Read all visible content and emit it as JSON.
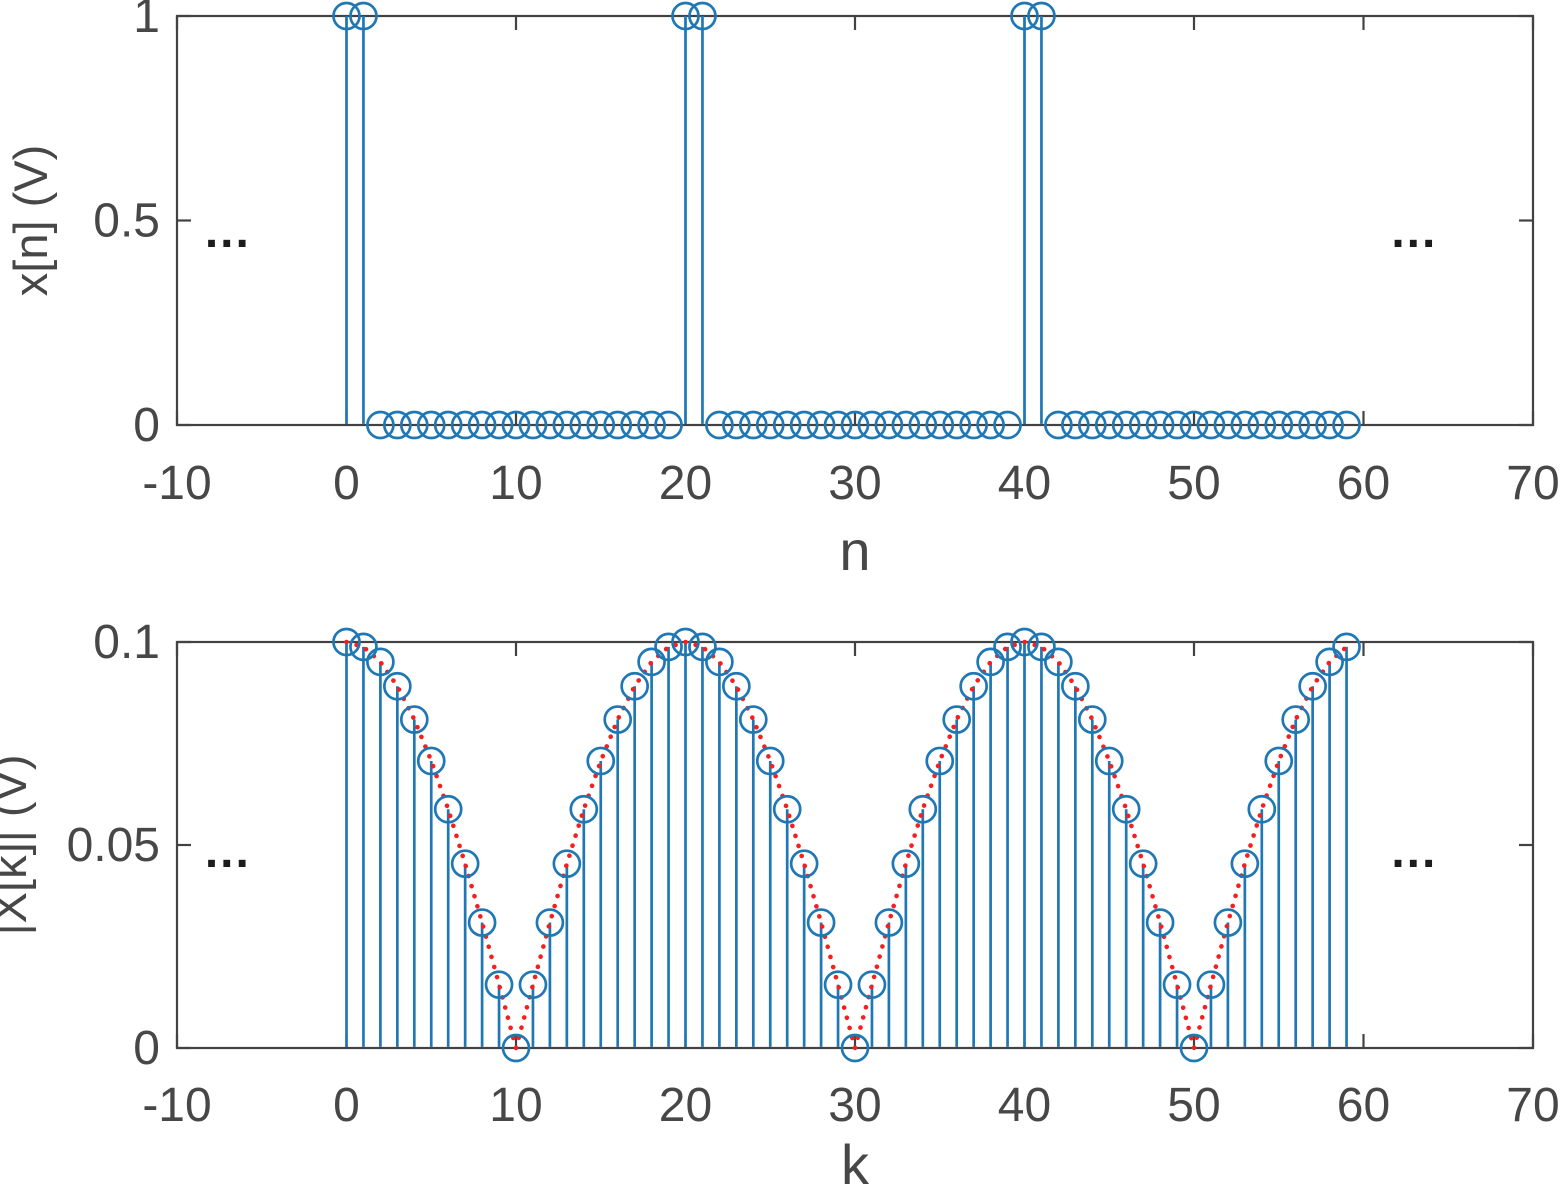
{
  "figure": {
    "background": "#ffffff"
  },
  "colors": {
    "stem": "#1f77b4",
    "marker": "#1f77b4",
    "dotted_line": "#f51f1f",
    "axis": "#424242",
    "tick_label": "#474747",
    "axis_label": "#474747",
    "annotation": "#1c1c1c"
  },
  "chart_data": [
    {
      "type": "stem",
      "name": "time-domain-signal",
      "xlabel": "n",
      "ylabel": "x[n] (V)",
      "xlim": [
        -10,
        70
      ],
      "ylim": [
        0,
        1
      ],
      "xticks": [
        -10,
        0,
        10,
        20,
        30,
        40,
        50,
        60,
        70
      ],
      "xtick_labels": [
        "-10",
        "0",
        "10",
        "20",
        "30",
        "40",
        "50",
        "60",
        "70"
      ],
      "yticks": [
        0,
        0.5,
        1
      ],
      "ytick_labels": [
        "0",
        "0.5",
        "1"
      ],
      "marker": "open-circle",
      "dotted_envelope": false,
      "x": [
        0,
        1,
        2,
        3,
        4,
        5,
        6,
        7,
        8,
        9,
        10,
        11,
        12,
        13,
        14,
        15,
        16,
        17,
        18,
        19,
        20,
        21,
        22,
        23,
        24,
        25,
        26,
        27,
        28,
        29,
        30,
        31,
        32,
        33,
        34,
        35,
        36,
        37,
        38,
        39,
        40,
        41,
        42,
        43,
        44,
        45,
        46,
        47,
        48,
        49,
        50,
        51,
        52,
        53,
        54,
        55,
        56,
        57,
        58,
        59
      ],
      "values": [
        1,
        1,
        0,
        0,
        0,
        0,
        0,
        0,
        0,
        0,
        0,
        0,
        0,
        0,
        0,
        0,
        0,
        0,
        0,
        0,
        1,
        1,
        0,
        0,
        0,
        0,
        0,
        0,
        0,
        0,
        0,
        0,
        0,
        0,
        0,
        0,
        0,
        0,
        0,
        0,
        1,
        1,
        0,
        0,
        0,
        0,
        0,
        0,
        0,
        0,
        0,
        0,
        0,
        0,
        0,
        0,
        0,
        0,
        0,
        0
      ],
      "annotations": [
        {
          "text": "...",
          "x": -7,
          "y": 0.46
        },
        {
          "text": "...",
          "x": 63,
          "y": 0.46
        }
      ]
    },
    {
      "type": "stem",
      "name": "dft-magnitude",
      "xlabel": "k",
      "ylabel": "|X[k]| (V)",
      "xlim": [
        -10,
        70
      ],
      "ylim": [
        0,
        0.1
      ],
      "xticks": [
        -10,
        0,
        10,
        20,
        30,
        40,
        50,
        60,
        70
      ],
      "xtick_labels": [
        "-10",
        "0",
        "10",
        "20",
        "30",
        "40",
        "50",
        "60",
        "70"
      ],
      "yticks": [
        0,
        0.05,
        0.1
      ],
      "ytick_labels": [
        "0",
        "0.05",
        "0.1"
      ],
      "marker": "open-circle",
      "dotted_envelope": true,
      "x": [
        0,
        1,
        2,
        3,
        4,
        5,
        6,
        7,
        8,
        9,
        10,
        11,
        12,
        13,
        14,
        15,
        16,
        17,
        18,
        19,
        20,
        21,
        22,
        23,
        24,
        25,
        26,
        27,
        28,
        29,
        30,
        31,
        32,
        33,
        34,
        35,
        36,
        37,
        38,
        39,
        40,
        41,
        42,
        43,
        44,
        45,
        46,
        47,
        48,
        49,
        50,
        51,
        52,
        53,
        54,
        55,
        56,
        57,
        58,
        59
      ],
      "values": [
        0.1,
        0.0988,
        0.0951,
        0.0891,
        0.0809,
        0.0707,
        0.0588,
        0.0454,
        0.0309,
        0.0156,
        0,
        0.0156,
        0.0309,
        0.0454,
        0.0588,
        0.0707,
        0.0809,
        0.0891,
        0.0951,
        0.0988,
        0.1,
        0.0988,
        0.0951,
        0.0891,
        0.0809,
        0.0707,
        0.0588,
        0.0454,
        0.0309,
        0.0156,
        0,
        0.0156,
        0.0309,
        0.0454,
        0.0588,
        0.0707,
        0.0809,
        0.0891,
        0.0951,
        0.0988,
        0.1,
        0.0988,
        0.0951,
        0.0891,
        0.0809,
        0.0707,
        0.0588,
        0.0454,
        0.0309,
        0.0156,
        0,
        0.0156,
        0.0309,
        0.0454,
        0.0588,
        0.0707,
        0.0809,
        0.0891,
        0.0951,
        0.0988
      ],
      "annotations": [
        {
          "text": "...",
          "x": -7,
          "y": 0.047
        },
        {
          "text": "...",
          "x": 63,
          "y": 0.047
        }
      ]
    }
  ]
}
